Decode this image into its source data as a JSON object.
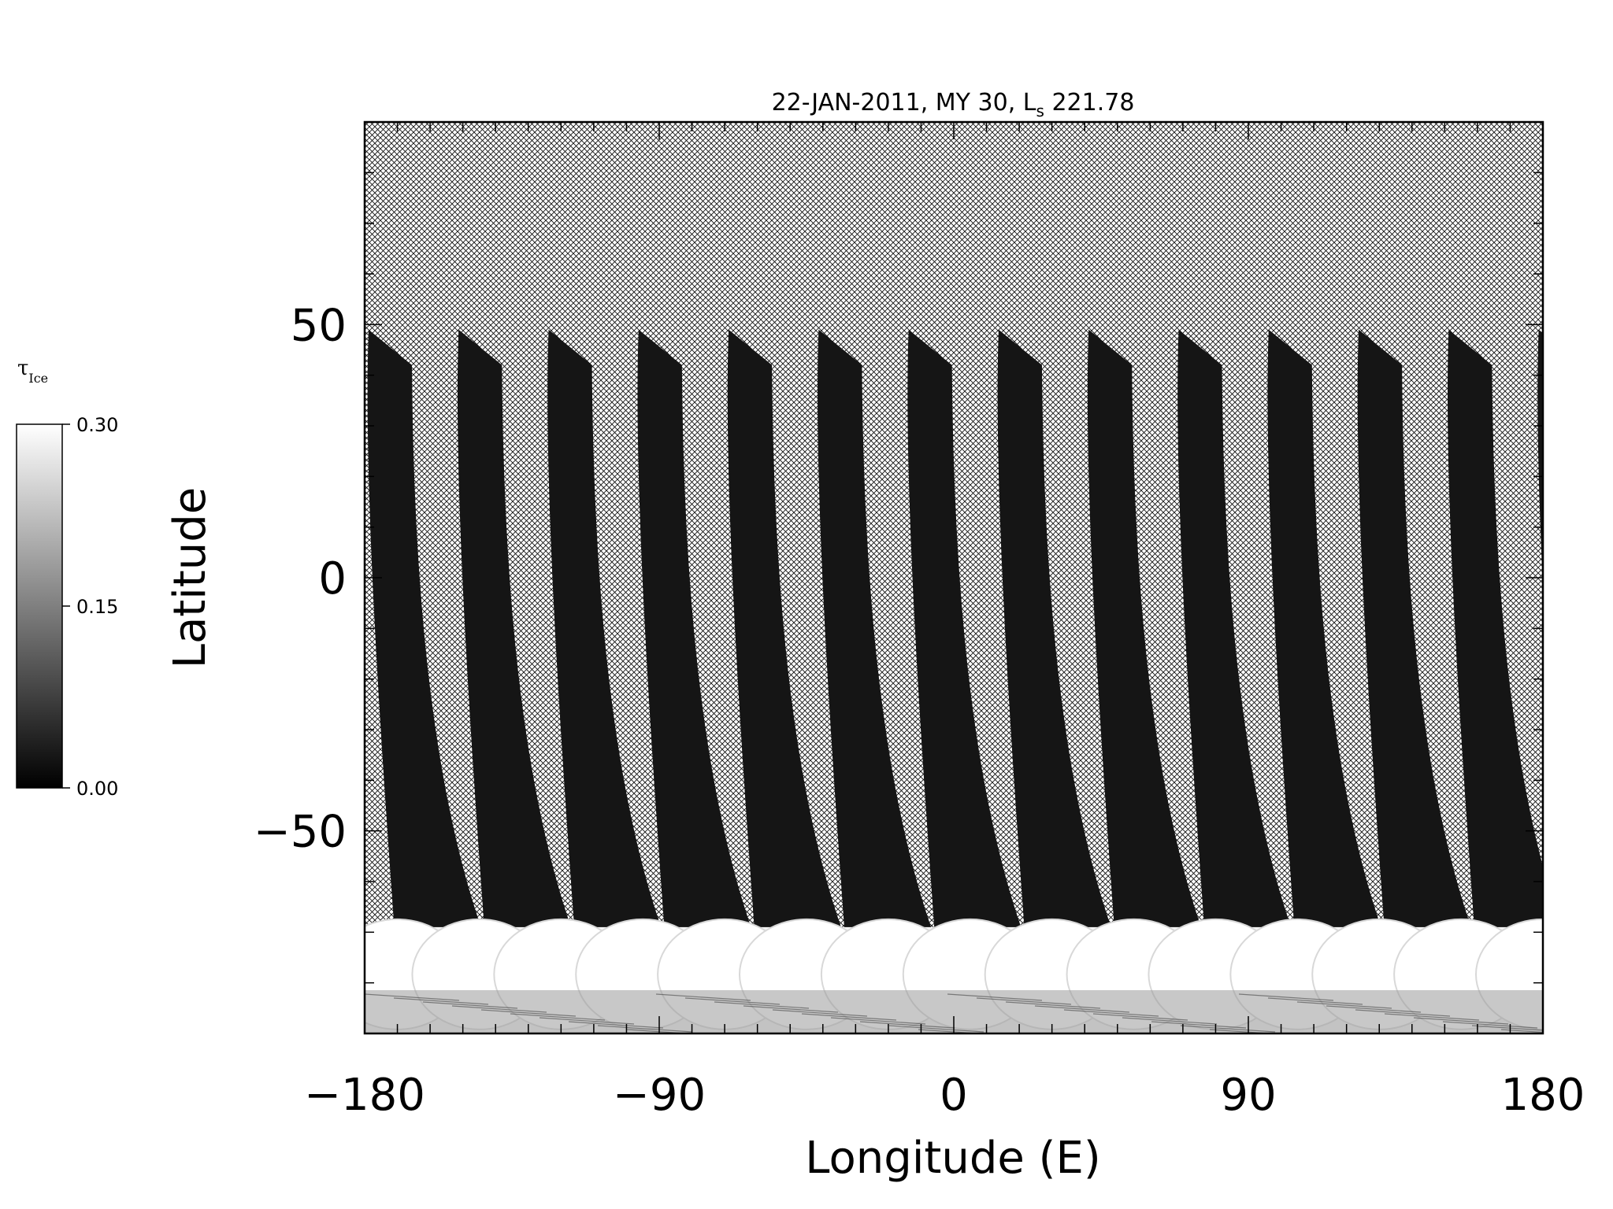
{
  "chart_data": {
    "type": "heatmap",
    "title": "22-JAN-2011, MY 30,  L",
    "title_sub": "s",
    "title_tail": " 221.78",
    "xlabel": "Longitude (E)",
    "ylabel": "Latitude",
    "xlim": [
      -180,
      180
    ],
    "ylim": [
      -90,
      90
    ],
    "x_ticks": [
      {
        "value": -180,
        "label": "−180"
      },
      {
        "value": -90,
        "label": "−90"
      },
      {
        "value": 0,
        "label": "0"
      },
      {
        "value": 90,
        "label": "90"
      },
      {
        "value": 180,
        "label": "180"
      }
    ],
    "y_ticks": [
      {
        "value": -50,
        "label": "−50"
      },
      {
        "value": 0,
        "label": "0"
      },
      {
        "value": 50,
        "label": "50"
      }
    ],
    "colorbar": {
      "symbol": "τ",
      "symbol_sub": "Ice",
      "min": 0.0,
      "max": 0.3,
      "ticks": [
        {
          "value": 0.0,
          "label": "0.00"
        },
        {
          "value": 0.15,
          "label": "0.15"
        },
        {
          "value": 0.3,
          "label": "0.30"
        }
      ],
      "colormap": "grayscale"
    },
    "no_data_fill": "crosshatch",
    "swaths": {
      "count": 14,
      "first_top_lon": -180,
      "spacing_lon": 27.5,
      "top_lat": 49,
      "bottom_lat": -70
    },
    "polar_cap": {
      "lat_from": -90,
      "lat_to": -69,
      "value": 0.3
    }
  }
}
